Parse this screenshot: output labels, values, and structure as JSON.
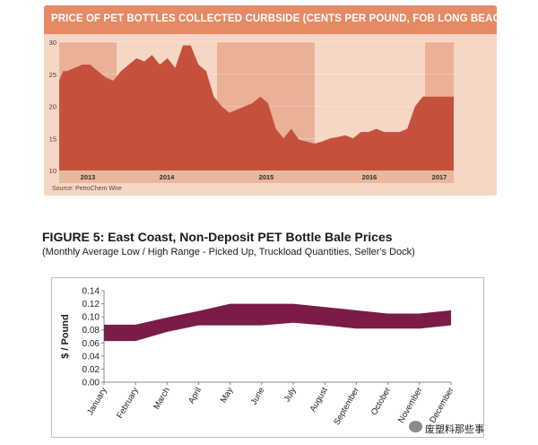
{
  "chart_data": [
    {
      "type": "area",
      "title": "PRICE OF PET BOTTLES COLLECTED CURBSIDE (CENTS PER POUND, FOB LONG BEACH, CA)",
      "source": "Source: PetroChem Wire",
      "ylim": [
        10,
        30
      ],
      "yticks": [
        "30",
        "25",
        "20",
        "15",
        "10"
      ],
      "xlabels": [
        "2013",
        "2014",
        "2015",
        "2016",
        "2017"
      ],
      "x": [
        0,
        0.5,
        1,
        2,
        3,
        4,
        5,
        6,
        7,
        8,
        9,
        10,
        11,
        12,
        13,
        14,
        15,
        16,
        17,
        18,
        19,
        20,
        21,
        22,
        23,
        24,
        25,
        26,
        27,
        28,
        29,
        30,
        31,
        32,
        33,
        34,
        35,
        36,
        37,
        38,
        39,
        40,
        41,
        42,
        43,
        44,
        45,
        46,
        47,
        48,
        49,
        50,
        51
      ],
      "y": [
        24,
        25.5,
        25.5,
        26,
        26.5,
        26.5,
        25.5,
        24.5,
        24,
        25.5,
        26.5,
        27.5,
        27,
        28,
        26.5,
        27.5,
        26,
        29.5,
        29.5,
        26.5,
        25.5,
        21.5,
        20,
        19,
        19.5,
        20,
        20.5,
        21.5,
        20.5,
        16.5,
        15,
        16.5,
        14.8,
        14.5,
        14.2,
        14.5,
        15,
        15.2,
        15.5,
        15,
        16,
        16,
        16.5,
        16,
        16,
        16,
        16.5,
        20,
        21.5,
        21.5,
        21.5,
        21.5,
        21.5
      ],
      "period_shading": [
        {
          "label": "2013",
          "shade": "dark"
        },
        {
          "label": "2014",
          "shade": "light"
        },
        {
          "label": "2015",
          "shade": "dark"
        },
        {
          "label": "2016",
          "shade": "light"
        },
        {
          "label": "2017",
          "shade": "dark"
        }
      ],
      "colors": {
        "area": "#c5513d",
        "panel": "#f6d6c4",
        "dark_band": "#eab196",
        "title_bar": "#e58a64"
      }
    },
    {
      "type": "area",
      "title": "FIGURE 5: East Coast, Non-Deposit PET Bottle Bale Prices",
      "subtitle": "(Monthly Average Low / High Range - Picked Up, Truckload Quantities, Seller's Dock)",
      "ylabel": "$ / Pound",
      "ylim": [
        0.0,
        0.14
      ],
      "yticks": [
        "0.14",
        "0.12",
        "0.10",
        "0.08",
        "0.06",
        "0.04",
        "0.02",
        "0.00"
      ],
      "categories": [
        "January",
        "February",
        "March",
        "April",
        "May",
        "June",
        "July",
        "August",
        "September",
        "October",
        "November",
        "December"
      ],
      "series": [
        {
          "values_low": [
            0.063,
            0.063,
            0.077,
            0.087,
            0.087,
            0.087,
            0.091,
            0.087,
            0.082,
            0.082,
            0.082,
            0.087
          ],
          "values_high": [
            0.088,
            0.088,
            0.099,
            0.109,
            0.12,
            0.12,
            0.12,
            0.115,
            0.11,
            0.105,
            0.105,
            0.11
          ]
        }
      ],
      "colors": {
        "band": "#7a1b48"
      }
    }
  ],
  "watermark": "废塑料那些事"
}
